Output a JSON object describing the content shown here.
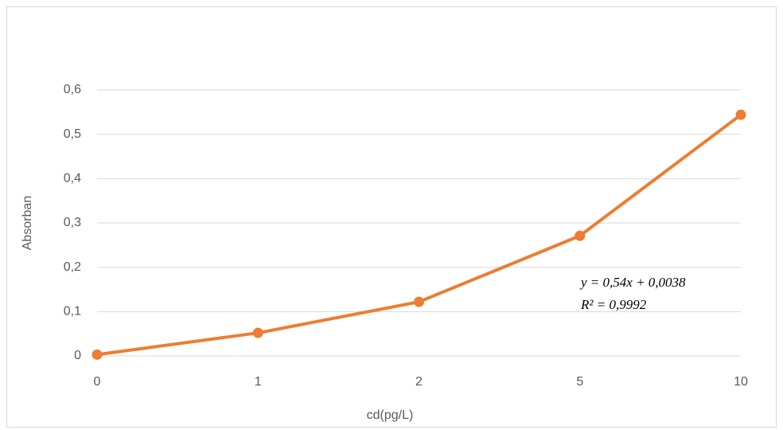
{
  "chart_data": {
    "type": "line",
    "x_label": "cd(pg/L)",
    "y_label": "Absorban",
    "categories": [
      "0",
      "1",
      "2",
      "5",
      "10"
    ],
    "series": [
      {
        "name": "Absorban",
        "color": "#ed7d31",
        "values": [
          0.003,
          0.052,
          0.122,
          0.271,
          0.544
        ]
      }
    ],
    "ylim": [
      0,
      0.6
    ],
    "yticks": [
      0,
      {
        "value": 0.1,
        "label": "0,1"
      },
      {
        "value": 0.2,
        "label": "0,2"
      },
      {
        "value": 0.3,
        "label": "0,3"
      },
      {
        "value": 0.4,
        "label": "0,4"
      },
      {
        "value": 0.5,
        "label": "0,5"
      },
      {
        "value": 0.6,
        "label": "0,6"
      }
    ],
    "grid": true,
    "annotations": [
      "y = 0,54x + 0,0038",
      "R² = 0,9992"
    ]
  }
}
